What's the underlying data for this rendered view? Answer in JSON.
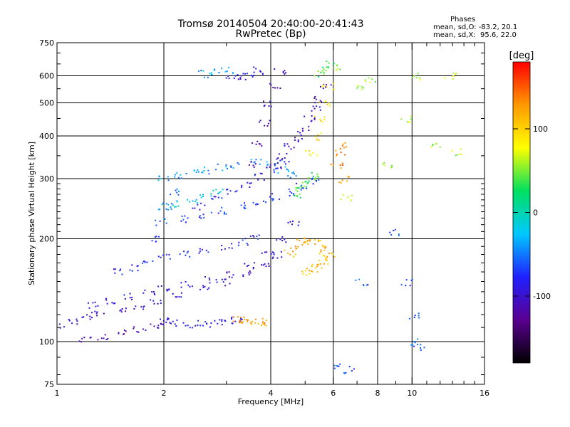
{
  "chart_data": {
    "type": "scatter",
    "title": "Tromsø 20140504 20:40:00-20:41:43",
    "subtitle": "RwPretec (Bp)",
    "xlabel": "Frequency [MHz]",
    "ylabel": "Stationary phase Virtual Height [km]",
    "x_scale": "log",
    "y_scale": "log",
    "xlim": [
      1,
      16
    ],
    "ylim": [
      75,
      750
    ],
    "grid": true,
    "x_ticks": [
      1,
      2,
      4,
      6,
      8,
      10,
      16
    ],
    "x_tick_labels": [
      "1",
      "2",
      "4",
      "6",
      "8",
      "10",
      "16"
    ],
    "y_ticks": [
      75,
      100,
      200,
      300,
      400,
      500,
      600,
      750
    ],
    "y_tick_labels": [
      "75",
      "100",
      "200",
      "300",
      "400",
      "500",
      "600",
      "750"
    ],
    "colorbar": {
      "label": "[deg]",
      "range": [
        -180,
        180
      ],
      "ticks": [
        100,
        0,
        -100
      ],
      "tick_labels": [
        "100",
        "0",
        "-100"
      ],
      "colors": [
        "#000000",
        "#5a0090",
        "#2020ff",
        "#00c8ff",
        "#00e060",
        "#ffff00",
        "#ff9900",
        "#ff0000"
      ]
    },
    "stats": {
      "header": "Phases",
      "O": "mean, sd,O: -83.2, 20.1",
      "X": "mean, sd,X:  95.6, 22.0"
    },
    "traces": [
      {
        "x": [
          1.0,
          1.1,
          1.2,
          1.3,
          1.5,
          1.7,
          1.9,
          2.2,
          2.6,
          3.0,
          3.4,
          3.8,
          4.1
        ],
        "y": [
          112,
          115,
          118,
          121,
          124,
          128,
          132,
          137,
          143,
          150,
          158,
          168,
          180
        ],
        "phase": -100
      },
      {
        "x": [
          1.25,
          1.4,
          1.6,
          1.8,
          2.0,
          2.3,
          2.7,
          3.1,
          3.5,
          3.9,
          4.3,
          4.6
        ],
        "y": [
          128,
          132,
          136,
          140,
          143,
          147,
          152,
          158,
          167,
          180,
          200,
          225
        ],
        "phase": -95
      },
      {
        "x": [
          1.2,
          1.35,
          1.5,
          1.7,
          1.9,
          2.0
        ],
        "y": [
          102,
          104,
          106,
          109,
          112,
          115
        ],
        "phase": -110
      },
      {
        "x": [
          2.0,
          2.2,
          2.4,
          2.6,
          2.8,
          3.0,
          3.2
        ],
        "y": [
          115,
          114,
          113,
          113,
          114,
          115,
          116
        ],
        "phase": -90
      },
      {
        "x": [
          3.2,
          3.35,
          3.5,
          3.65,
          3.8
        ],
        "y": [
          116,
          116,
          115,
          115,
          114
        ],
        "phase": 130
      },
      {
        "x": [
          1.5,
          1.65,
          1.8,
          2.0,
          2.3,
          2.6,
          3.0,
          3.3,
          3.6
        ],
        "y": [
          160,
          165,
          172,
          178,
          182,
          185,
          190,
          197,
          205
        ],
        "phase": -80
      },
      {
        "x": [
          4.5,
          4.7,
          4.9,
          5.1,
          5.3,
          5.5,
          5.7
        ],
        "y": [
          182,
          190,
          197,
          200,
          197,
          190,
          182
        ],
        "phase": 120
      },
      {
        "x": [
          5.0,
          5.2,
          5.4,
          5.6,
          5.8
        ],
        "y": [
          160,
          164,
          168,
          173,
          180
        ],
        "phase": 110
      },
      {
        "x": [
          2.0,
          2.2,
          2.4,
          2.6,
          2.9,
          3.2,
          3.6,
          4.0,
          4.3,
          4.6
        ],
        "y": [
          300,
          306,
          312,
          318,
          325,
          330,
          335,
          330,
          320,
          310
        ],
        "phase": -40
      },
      {
        "x": [
          2.3,
          2.6,
          2.9,
          3.3,
          3.7,
          4.1,
          4.5,
          4.9,
          5.3
        ],
        "y": [
          230,
          236,
          242,
          250,
          258,
          266,
          275,
          285,
          297
        ],
        "phase": -70
      },
      {
        "x": [
          2.5,
          2.8,
          3.1,
          3.4,
          3.7,
          4.0,
          4.3
        ],
        "y": [
          250,
          262,
          275,
          290,
          305,
          322,
          340
        ],
        "phase": -85
      },
      {
        "x": [
          4.1,
          4.3,
          4.5,
          4.7,
          4.9,
          5.1,
          5.3,
          5.5,
          5.7
        ],
        "y": [
          330,
          350,
          372,
          395,
          420,
          450,
          480,
          515,
          560
        ],
        "phase": -100
      },
      {
        "x": [
          5.2,
          5.35,
          5.5,
          5.65,
          5.8
        ],
        "y": [
          360,
          400,
          450,
          500,
          560
        ],
        "phase": 90
      },
      {
        "x": [
          3.5,
          3.65,
          3.8,
          3.95,
          4.1,
          4.25
        ],
        "y": [
          330,
          380,
          440,
          500,
          560,
          620
        ],
        "phase": -110
      },
      {
        "x": [
          4.7,
          4.85,
          5.0,
          5.15,
          5.3
        ],
        "y": [
          270,
          280,
          290,
          300,
          310
        ],
        "phase": 40
      },
      {
        "x": [
          3.1,
          3.3,
          3.5,
          3.7
        ],
        "y": [
          590,
          600,
          612,
          624
        ],
        "phase": -90
      },
      {
        "x": [
          2.6,
          2.8,
          3.0
        ],
        "y": [
          610,
          618,
          625
        ],
        "phase": -40
      },
      {
        "x": [
          5.5,
          5.65,
          5.8
        ],
        "y": [
          610,
          630,
          650
        ],
        "phase": 40
      },
      {
        "x": [
          1.85,
          1.95,
          2.05,
          2.15
        ],
        "y": [
          200,
          225,
          250,
          275
        ],
        "phase": -60
      },
      {
        "x": [
          2.0,
          2.2,
          2.4,
          2.6,
          2.8
        ],
        "y": [
          250,
          255,
          262,
          268,
          275
        ],
        "phase": -20
      },
      {
        "x": [
          6.1,
          6.2,
          6.3,
          6.4
        ],
        "y": [
          330,
          360,
          380,
          300
        ],
        "phase": 130
      },
      {
        "x": [
          6.2,
          6.5,
          7.0,
          7.6,
          8.4,
          9.6,
          10.3,
          11.5,
          12.8,
          13.4
        ],
        "y": [
          640,
          265,
          560,
          590,
          330,
          450,
          600,
          380,
          600,
          360
        ],
        "phase": 60
      },
      {
        "x": [
          6.2,
          6.6,
          7.2,
          8.8,
          9.6,
          10.0,
          10.2,
          10.4
        ],
        "y": [
          85,
          83,
          150,
          210,
          150,
          120,
          100,
          97
        ],
        "phase": -60
      }
    ]
  }
}
